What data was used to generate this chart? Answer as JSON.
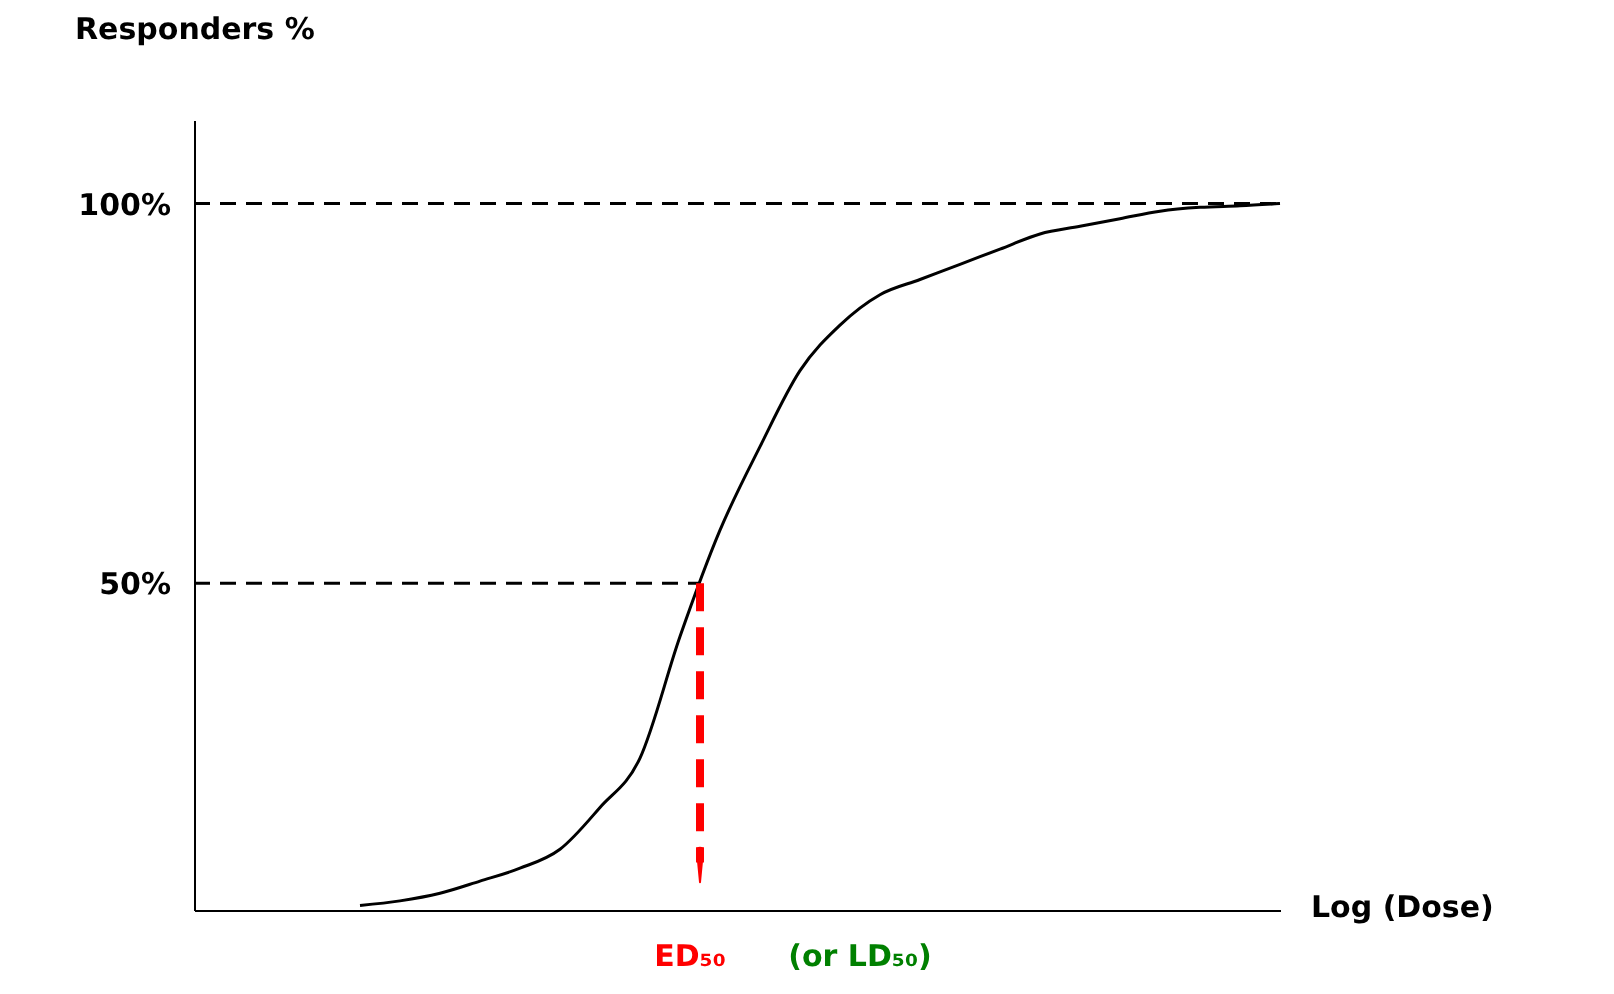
{
  "chart_data": {
    "type": "line",
    "xlabel": "Log (Dose)",
    "ylabel": "Responders %",
    "categories": [
      null,
      null,
      null,
      null,
      null,
      null,
      null,
      null,
      null,
      null,
      null,
      null,
      null,
      null,
      null,
      null,
      null,
      null,
      null,
      null,
      null,
      null,
      null,
      null,
      null,
      null,
      null,
      null
    ],
    "values": [
      null,
      null,
      null,
      null,
      7.6,
      8.2,
      9.2,
      10.8,
      12.5,
      15,
      20.5,
      27,
      43,
      57,
      68,
      78,
      84,
      88,
      90,
      92,
      94,
      96,
      97,
      98,
      99,
      99.5,
      99.7,
      100
    ],
    "color": "#000000",
    "line_style": "solid",
    "marker": "none",
    "ylim": [
      7,
      111
    ],
    "yticks": [
      {
        "value": 50,
        "label": "50%"
      },
      {
        "value": 100,
        "label": "100%"
      }
    ],
    "tick_labels": "y",
    "grid": false,
    "ref_lines": [
      {
        "axis": "y",
        "value": 100,
        "line_style": "dashed",
        "color": "#000000"
      },
      {
        "axis": "y",
        "value": 50,
        "line_style": "dashed",
        "color": "#000000"
      }
    ],
    "annotations": [
      "ED₅₀",
      "(or LD₅₀)"
    ]
  }
}
